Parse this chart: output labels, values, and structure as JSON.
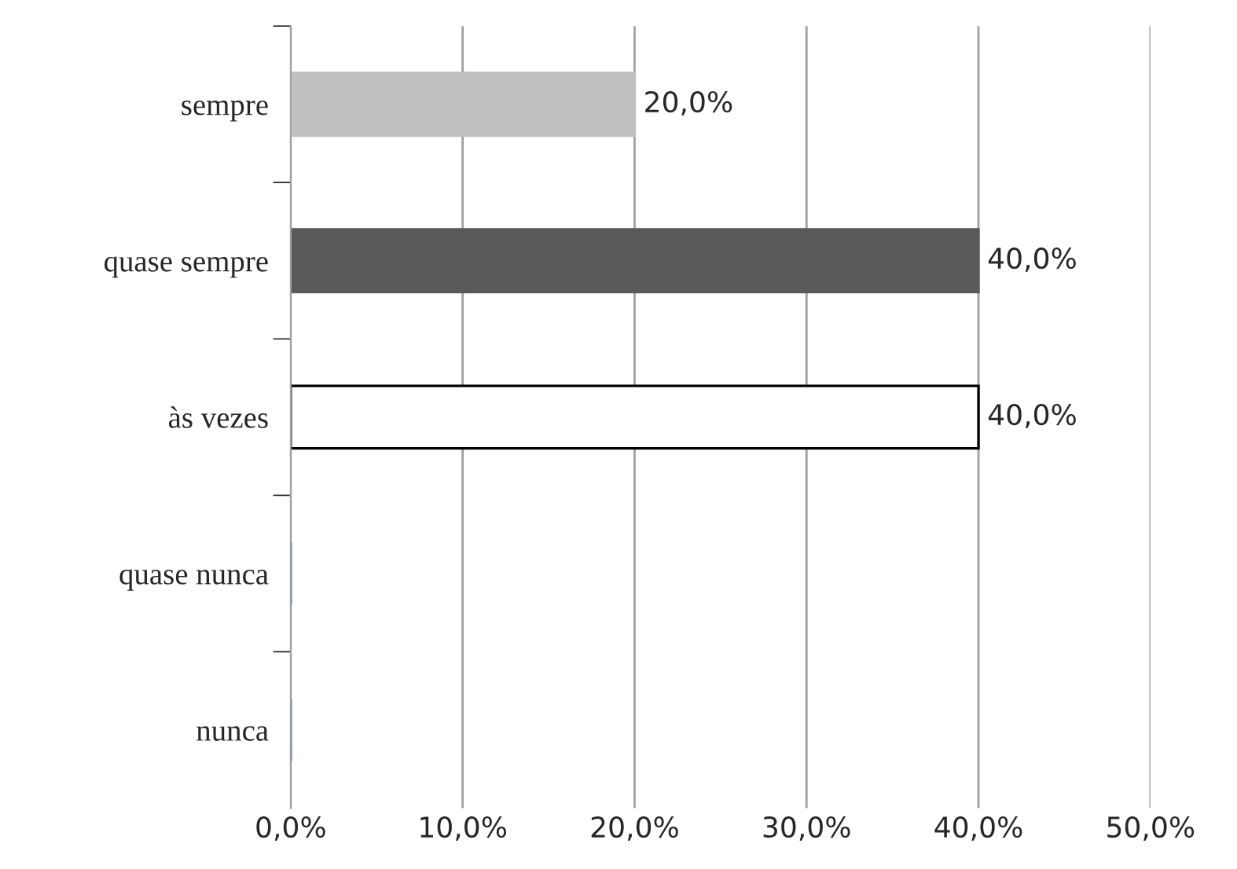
{
  "chart_data": {
    "type": "bar",
    "orientation": "horizontal",
    "categories": [
      "sempre",
      "quase sempre",
      "às vezes",
      "quase nunca",
      "nunca"
    ],
    "values": [
      20,
      40,
      40,
      0,
      0
    ],
    "colors": [
      "#c0c0c0",
      "#5a5a5a",
      "#ffffff",
      "#4472c4",
      "#4472c4"
    ],
    "value_labels": [
      "20,0%",
      "40,0%",
      "40,0%",
      null,
      null
    ],
    "xlim": [
      0,
      50
    ],
    "xticks": [
      {
        "value": 0,
        "label": "0,0%"
      },
      {
        "value": 10,
        "label": "10,0%"
      },
      {
        "value": 20,
        "label": "20,0%"
      },
      {
        "value": 30,
        "label": "30,0%"
      },
      {
        "value": 40,
        "label": "40,0%"
      },
      {
        "value": 50,
        "label": "50,0%"
      }
    ],
    "grid": "x",
    "legend": false
  }
}
